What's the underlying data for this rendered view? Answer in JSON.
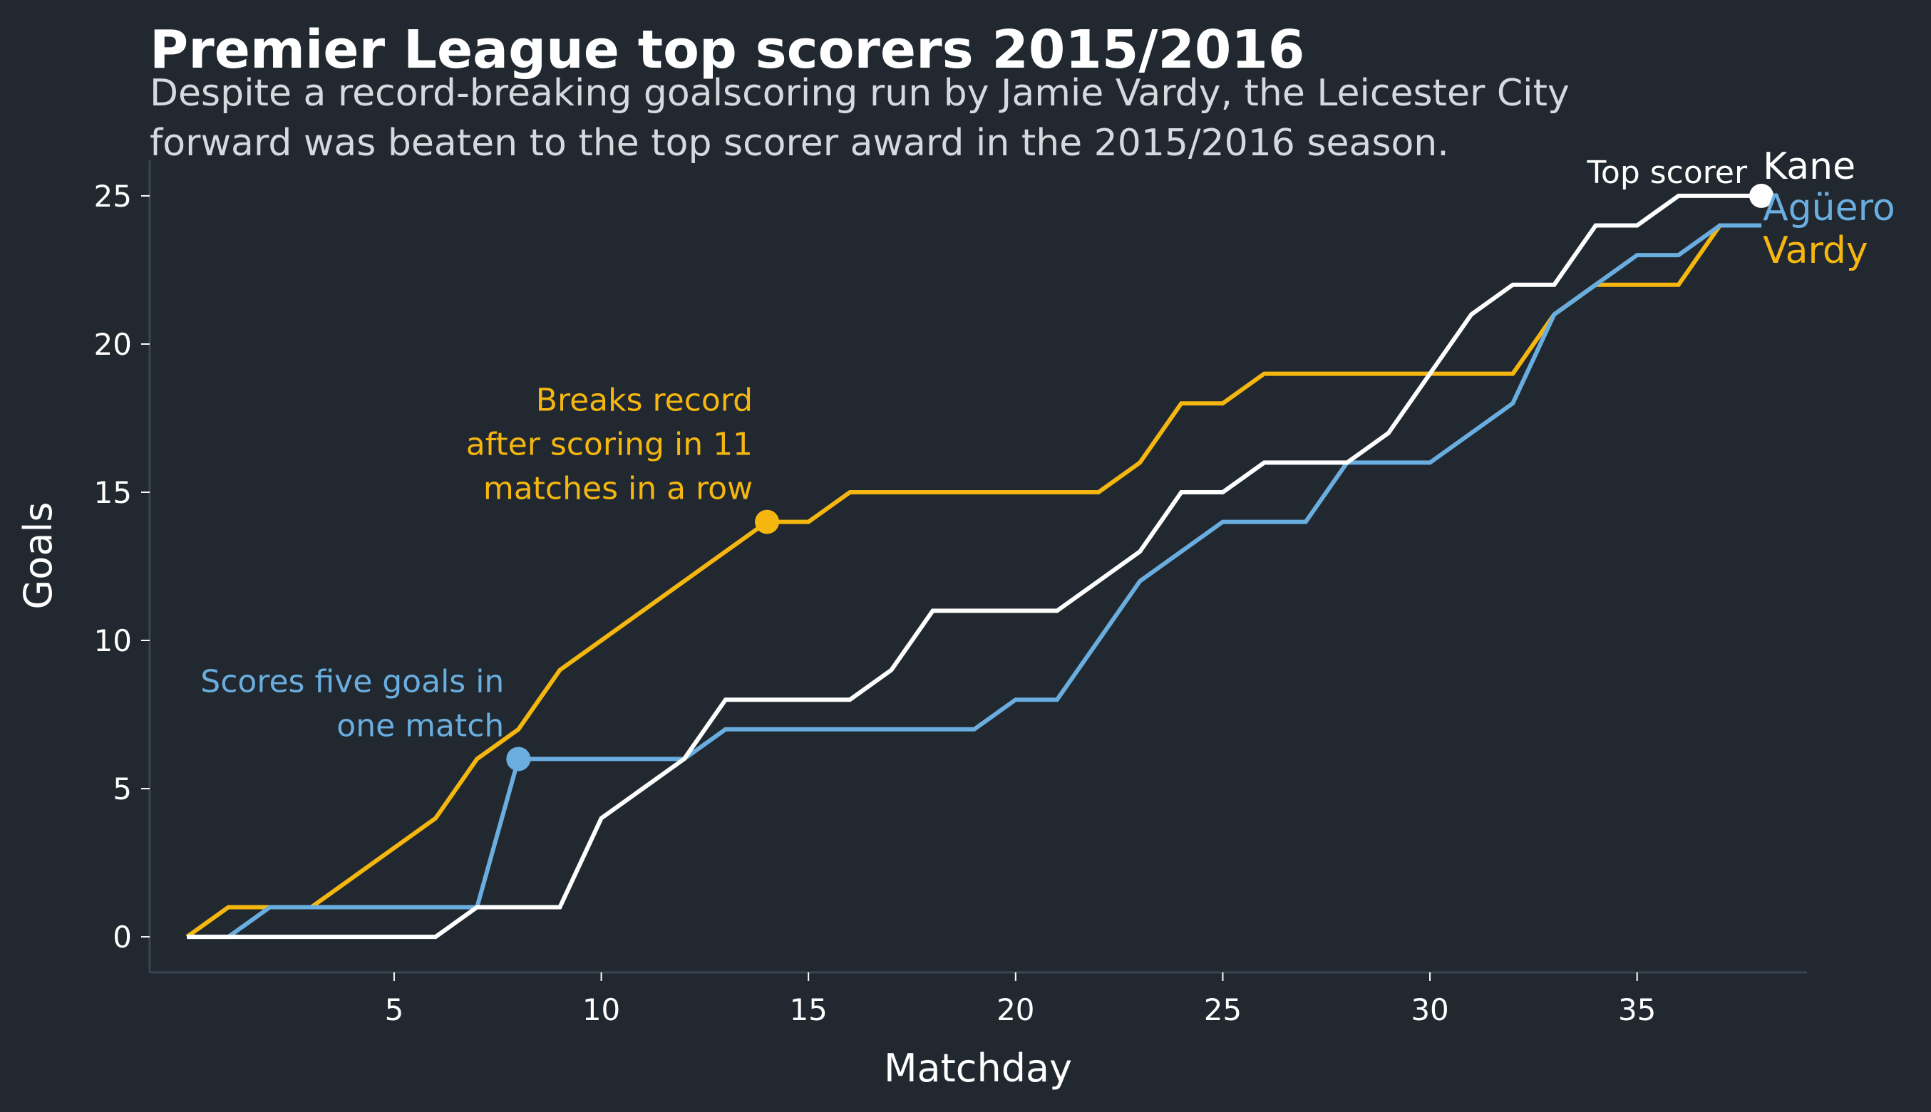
{
  "chart_data": {
    "type": "line",
    "title": "Premier League top scorers 2015/2016",
    "subtitle_lines": [
      "Despite a record-breaking goalscoring run by Jamie Vardy, the Leicester City",
      "forward was beaten to the top scorer award in the 2015/2016 season."
    ],
    "xlabel": "Matchday",
    "ylabel": "Goals",
    "xlim": [
      -0.9,
      39.1
    ],
    "ylim": [
      -1.2,
      26.2
    ],
    "x_ticks": [
      5,
      10,
      15,
      20,
      25,
      30,
      35
    ],
    "y_ticks": [
      0,
      5,
      10,
      15,
      20,
      25
    ],
    "grid": false,
    "background": "#212830",
    "x": [
      0,
      1,
      2,
      3,
      4,
      5,
      6,
      7,
      8,
      9,
      10,
      11,
      12,
      13,
      14,
      15,
      16,
      17,
      18,
      19,
      20,
      21,
      22,
      23,
      24,
      25,
      26,
      27,
      28,
      29,
      30,
      31,
      32,
      33,
      34,
      35,
      36,
      37,
      38
    ],
    "series": [
      {
        "name": "Vardy",
        "color": "#f5b70f",
        "values": [
          0,
          1,
          1,
          1,
          2,
          3,
          4,
          6,
          7,
          9,
          10,
          11,
          12,
          13,
          14,
          14,
          15,
          15,
          15,
          15,
          15,
          15,
          15,
          16,
          18,
          18,
          19,
          19,
          19,
          19,
          19,
          19,
          19,
          21,
          22,
          22,
          22,
          24,
          24
        ]
      },
      {
        "name": "Agüero",
        "color": "#6aaee0",
        "values": [
          0,
          0,
          1,
          1,
          1,
          1,
          1,
          1,
          6,
          6,
          6,
          6,
          6,
          7,
          7,
          7,
          7,
          7,
          7,
          7,
          8,
          8,
          10,
          12,
          13,
          14,
          14,
          14,
          16,
          16,
          16,
          17,
          18,
          21,
          22,
          23,
          23,
          24,
          24
        ]
      },
      {
        "name": "Kane",
        "color": "#ffffff",
        "values": [
          0,
          0,
          0,
          0,
          0,
          0,
          0,
          1,
          1,
          1,
          4,
          5,
          6,
          8,
          8,
          8,
          8,
          9,
          11,
          11,
          11,
          11,
          12,
          13,
          15,
          15,
          16,
          16,
          16,
          17,
          19,
          21,
          22,
          22,
          24,
          24,
          25,
          25,
          25
        ]
      }
    ],
    "annotations": [
      {
        "series": "Vardy",
        "x": 14,
        "y": 14,
        "color": "#f5b70f",
        "lines": [
          "Breaks record",
          "after scoring in 11",
          "matches in a row"
        ]
      },
      {
        "series": "Agüero",
        "x": 8,
        "y": 6,
        "color": "#6aaee0",
        "lines": [
          "Scores five goals in",
          "one match"
        ]
      },
      {
        "series": "Kane",
        "x": 38,
        "y": 25,
        "color": "#ffffff",
        "lines": [
          "Top scorer"
        ]
      }
    ]
  }
}
